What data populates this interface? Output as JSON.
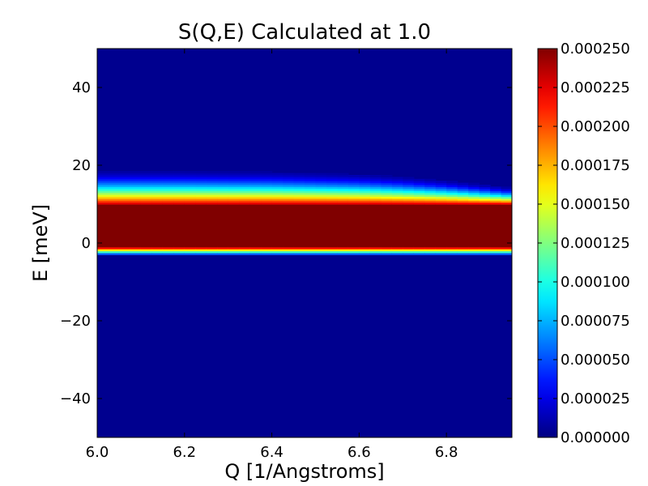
{
  "chart_data": {
    "type": "heatmap",
    "title": "S(Q,E) Calculated at 1.0",
    "xlabel": "Q [1/Angstroms]",
    "ylabel": "E [meV]",
    "xlim": [
      6.0,
      6.95
    ],
    "ylim": [
      -50,
      50
    ],
    "xticks": [
      "6.0",
      "6.2",
      "6.4",
      "6.6",
      "6.8"
    ],
    "xtick_values": [
      6.0,
      6.2,
      6.4,
      6.6,
      6.8
    ],
    "yticks": [
      "−40",
      "−20",
      "0",
      "20",
      "40"
    ],
    "ytick_values": [
      -40,
      -20,
      0,
      20,
      40
    ],
    "colormap": "jet",
    "colorbar": {
      "vmin": 0.0,
      "vmax": 0.00025,
      "ticks": [
        "0.000000",
        "0.000025",
        "0.000050",
        "0.000075",
        "0.000100",
        "0.000125",
        "0.000150",
        "0.000175",
        "0.000200",
        "0.000225",
        "0.000250"
      ],
      "tick_values": [
        0,
        2.5e-05,
        5e-05,
        7.5e-05,
        0.0001,
        0.000125,
        0.00015,
        0.000175,
        0.0002,
        0.000225,
        0.00025
      ]
    },
    "band": {
      "saturated_range_meV": [
        -1.0,
        10.0
      ],
      "lower_edge_meV": -2.0,
      "upper_tail_top_meV": {
        "q": [
          6.0,
          6.2,
          6.4,
          6.6,
          6.7,
          6.8,
          6.9,
          6.95
        ],
        "e": [
          19.0,
          19.0,
          18.8,
          18.2,
          17.5,
          16.5,
          15.2,
          14.5
        ]
      }
    }
  }
}
